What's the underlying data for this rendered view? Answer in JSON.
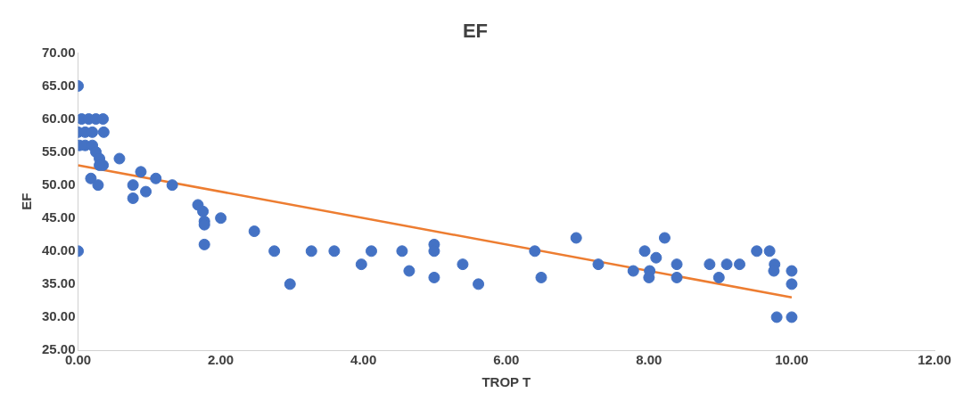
{
  "chart_data": {
    "type": "scatter",
    "title": "EF",
    "xlabel": "TROP T",
    "ylabel": "EF",
    "xlim": [
      0,
      12
    ],
    "xticks": [
      {
        "value": 0,
        "label": "0.00"
      },
      {
        "value": 2,
        "label": "2.00"
      },
      {
        "value": 4,
        "label": "4.00"
      },
      {
        "value": 6,
        "label": "6.00"
      },
      {
        "value": 8,
        "label": "8.00"
      },
      {
        "value": 10,
        "label": "10.00"
      },
      {
        "value": 12,
        "label": "12.00"
      }
    ],
    "ylim": [
      25,
      70
    ],
    "yticks": [
      {
        "value": 25,
        "label": "25.00"
      },
      {
        "value": 30,
        "label": "30.00"
      },
      {
        "value": 35,
        "label": "35.00"
      },
      {
        "value": 40,
        "label": "40.00"
      },
      {
        "value": 45,
        "label": "45.00"
      },
      {
        "value": 50,
        "label": "50.00"
      },
      {
        "value": 55,
        "label": "55.00"
      },
      {
        "value": 60,
        "label": "60.00"
      },
      {
        "value": 65,
        "label": "65.00"
      },
      {
        "value": 70,
        "label": "70.00"
      }
    ],
    "grid": false,
    "legend": false,
    "marker": "circle",
    "series": [
      {
        "type": "scatter",
        "color": "#4472c4",
        "x": [
          0,
          0.05,
          0.15,
          0.25,
          0.35,
          0,
          0.1,
          0.2,
          0.36,
          0.02,
          0.1,
          0.2,
          0.25,
          0.3,
          0.35,
          0.3,
          0.58,
          0.18,
          0.28,
          0.77,
          0.77,
          0.88,
          0.95,
          1.09,
          1.32,
          1.68,
          1.75,
          1.77,
          1.77,
          2.0,
          1.77,
          2.47,
          2.75,
          2.97,
          0,
          3.27,
          3.59,
          3.97,
          4.11,
          4.54,
          4.64,
          4.99,
          4.99,
          4.99,
          5.39,
          5.61,
          6.4,
          6.49,
          6.98,
          7.29,
          7.78,
          7.94,
          8.01,
          8.0,
          8.1,
          8.22,
          8.39,
          8.39,
          8.85,
          8.98,
          9.09,
          9.27,
          9.51,
          9.69,
          9.76,
          9.75,
          10,
          10,
          9.79,
          10
        ],
        "values": [
          65,
          60,
          60,
          60,
          60,
          58,
          58,
          58,
          58,
          56,
          56,
          56,
          55,
          54,
          53,
          53,
          54,
          51,
          50,
          50,
          48,
          52,
          49,
          51,
          50,
          47,
          46,
          44.5,
          44,
          45,
          41,
          43,
          40,
          35,
          40,
          40,
          40,
          38,
          40,
          40,
          37,
          41,
          40,
          36,
          38,
          35,
          40,
          36,
          42,
          38,
          37,
          40,
          37,
          36,
          39,
          42,
          38,
          36,
          38,
          36,
          38,
          38,
          40,
          40,
          38,
          37,
          37,
          35,
          30,
          30
        ]
      },
      {
        "type": "line",
        "color": "#ed7d31",
        "marker": "none",
        "x": [
          0,
          10
        ],
        "values": [
          53,
          33
        ]
      }
    ]
  }
}
